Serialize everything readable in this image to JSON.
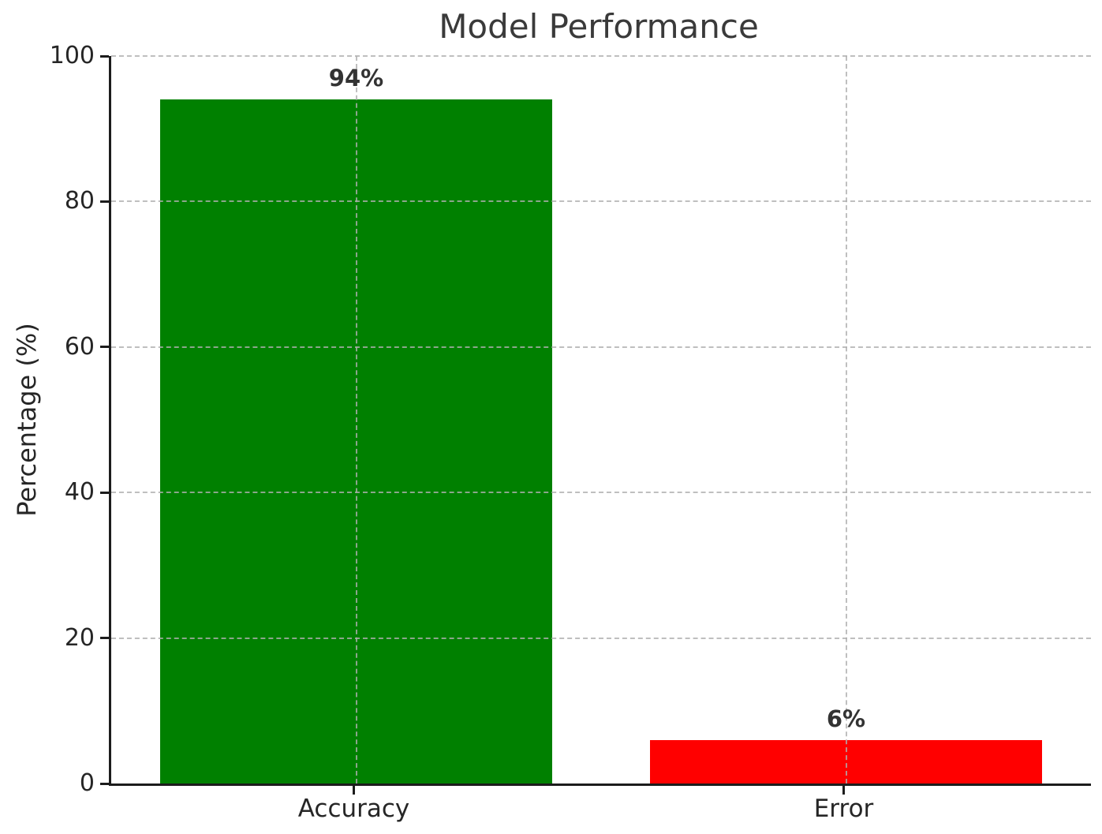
{
  "chart_data": {
    "type": "bar",
    "title": "Model Performance",
    "xlabel": "",
    "ylabel": "Percentage (%)",
    "categories": [
      "Accuracy",
      "Error"
    ],
    "values": [
      94,
      6
    ],
    "value_labels": [
      "94%",
      "6%"
    ],
    "bar_colors": [
      "#008000",
      "#ff0000"
    ],
    "ylim": [
      0,
      100
    ],
    "yticks": [
      0,
      20,
      40,
      60,
      80,
      100
    ],
    "ytick_labels": [
      "0",
      "20",
      "40",
      "60",
      "80",
      "100"
    ],
    "grid": "dashed gridlines on both axes, drawn over bars",
    "legend": "none"
  },
  "colors": {
    "background": "#ffffff",
    "title_text": "#3a3a3a",
    "tick_text": "#262626",
    "value_label_text": "#333333",
    "spine": "#1c1c1c",
    "accuracy_bar": "#008000",
    "error_bar": "#ff0000"
  }
}
